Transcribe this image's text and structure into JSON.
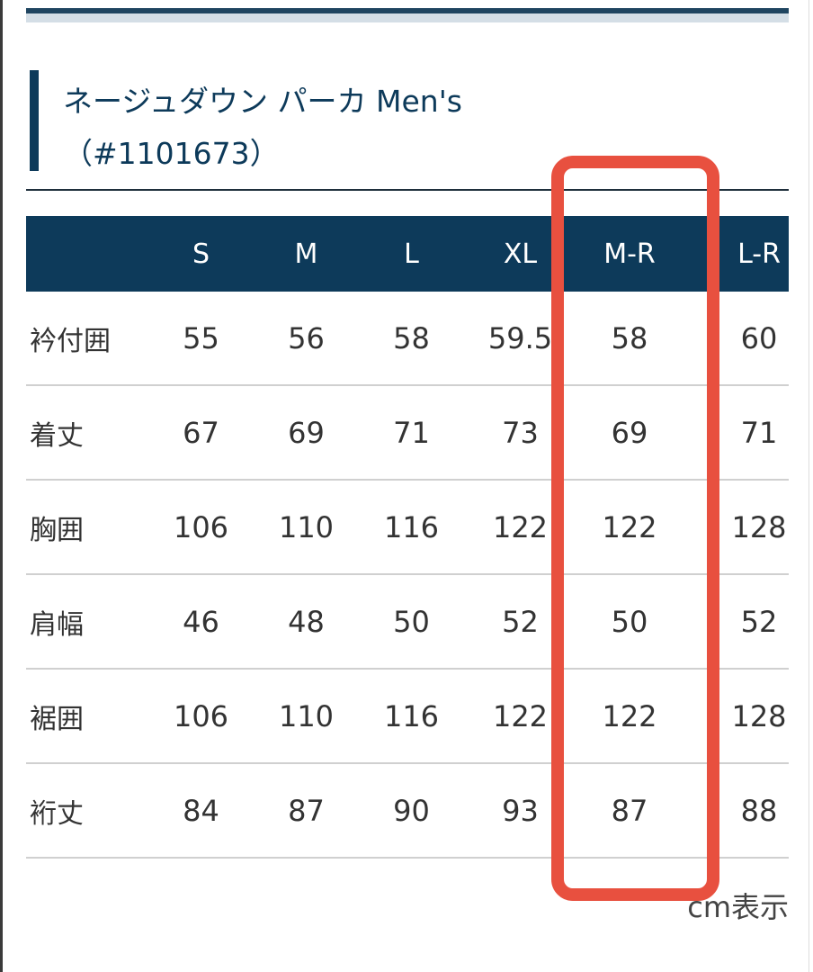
{
  "title": {
    "line1": "ネージュダウン パーカ Men's",
    "line2": "（#1101673）"
  },
  "table": {
    "headers": [
      "",
      "S",
      "M",
      "L",
      "XL",
      "M-R",
      "L-R"
    ],
    "rows": [
      {
        "label": "衿付囲",
        "values": [
          "55",
          "56",
          "58",
          "59.5",
          "58",
          "60"
        ]
      },
      {
        "label": "着丈",
        "values": [
          "67",
          "69",
          "71",
          "73",
          "69",
          "71"
        ]
      },
      {
        "label": "胸囲",
        "values": [
          "106",
          "110",
          "116",
          "122",
          "122",
          "128"
        ]
      },
      {
        "label": "肩幅",
        "values": [
          "46",
          "48",
          "50",
          "52",
          "50",
          "52"
        ]
      },
      {
        "label": "裾囲",
        "values": [
          "106",
          "110",
          "116",
          "122",
          "122",
          "128"
        ]
      },
      {
        "label": "裄丈",
        "values": [
          "84",
          "87",
          "90",
          "93",
          "87",
          "88"
        ]
      }
    ]
  },
  "unit_note": "cm表示",
  "colors": {
    "header": "#0d3a5a",
    "highlight": "#e8503f"
  }
}
